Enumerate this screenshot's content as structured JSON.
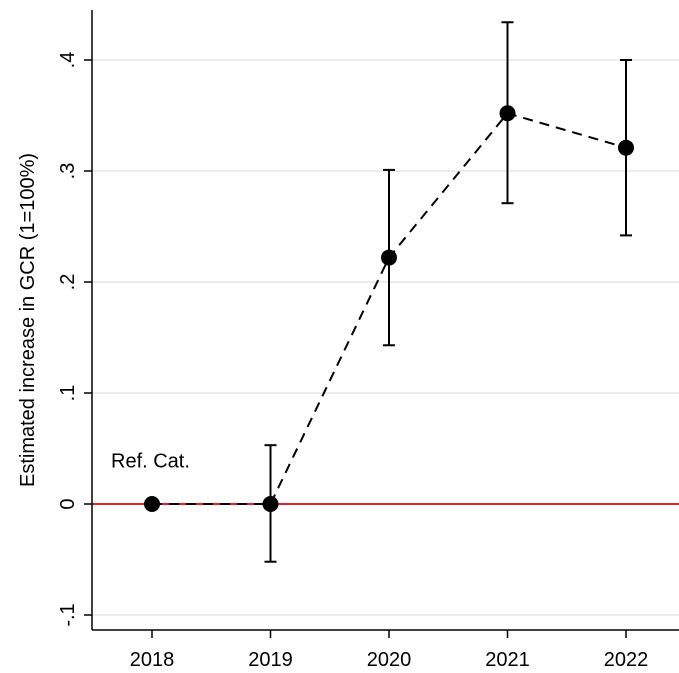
{
  "chart_data": {
    "type": "scatter",
    "subtype": "coefficient plot with confidence intervals",
    "title": "",
    "xlabel": "",
    "ylabel": "Estimated increase in GCR (1=100%)",
    "x": [
      2018,
      2019,
      2020,
      2021,
      2022
    ],
    "x_tick_labels": [
      "2018",
      "2019",
      "2020",
      "2021",
      "2022"
    ],
    "series": [
      {
        "values": [
          0,
          0,
          0.222,
          0.352,
          0.321
        ],
        "ci_lower": [
          null,
          -0.052,
          0.143,
          0.271,
          0.242
        ],
        "ci_upper": [
          null,
          0.053,
          0.301,
          0.434,
          0.4
        ],
        "line_style": "dashed",
        "color": "#000000"
      }
    ],
    "xlim": [
      2017.5,
      2022.45
    ],
    "ylim": [
      -0.115,
      0.45
    ],
    "y_ticks": [
      -0.1,
      0,
      0.1,
      0.2,
      0.3,
      0.4
    ],
    "y_tick_labels": [
      "-.1",
      "0",
      ".1",
      ".2",
      ".3",
      ".4"
    ],
    "reference_line": {
      "y": 0,
      "color": "#e8202a"
    },
    "annotations": [
      {
        "text": "Ref. Cat.",
        "x": 2018,
        "y": 0.04
      }
    ],
    "grid": true,
    "grid_color": "#e6e6e6",
    "legend": "none"
  }
}
